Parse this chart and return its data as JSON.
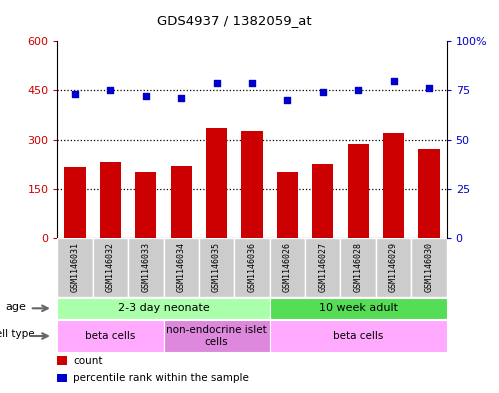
{
  "title": "GDS4937 / 1382059_at",
  "samples": [
    "GSM1146031",
    "GSM1146032",
    "GSM1146033",
    "GSM1146034",
    "GSM1146035",
    "GSM1146036",
    "GSM1146026",
    "GSM1146027",
    "GSM1146028",
    "GSM1146029",
    "GSM1146030"
  ],
  "counts": [
    215,
    230,
    200,
    220,
    335,
    325,
    200,
    225,
    285,
    320,
    270
  ],
  "percentiles": [
    73,
    75,
    72,
    71,
    79,
    79,
    70,
    74,
    75,
    80,
    76
  ],
  "bar_color": "#cc0000",
  "dot_color": "#0000cc",
  "ylim_left": [
    0,
    600
  ],
  "ylim_right": [
    0,
    100
  ],
  "yticks_left": [
    0,
    150,
    300,
    450,
    600
  ],
  "ytick_labels_left": [
    "0",
    "150",
    "300",
    "450",
    "600"
  ],
  "yticks_right": [
    0,
    25,
    50,
    75,
    100
  ],
  "ytick_labels_right": [
    "0",
    "25",
    "50",
    "75",
    "100%"
  ],
  "grid_lines": [
    150,
    300,
    450
  ],
  "age_groups": [
    {
      "label": "2-3 day neonate",
      "start": 0,
      "end": 6,
      "color": "#aaffaa"
    },
    {
      "label": "10 week adult",
      "start": 6,
      "end": 11,
      "color": "#55dd55"
    }
  ],
  "cell_type_groups": [
    {
      "label": "beta cells",
      "start": 0,
      "end": 3,
      "color": "#ffaaff"
    },
    {
      "label": "non-endocrine islet\ncells",
      "start": 3,
      "end": 6,
      "color": "#dd88dd"
    },
    {
      "label": "beta cells",
      "start": 6,
      "end": 11,
      "color": "#ffaaff"
    }
  ],
  "legend_items": [
    {
      "color": "#cc0000",
      "label": "count"
    },
    {
      "color": "#0000cc",
      "label": "percentile rank within the sample"
    }
  ],
  "background_color": "#ffffff",
  "plot_bg": "#ffffff",
  "tick_area_bg": "#cccccc"
}
